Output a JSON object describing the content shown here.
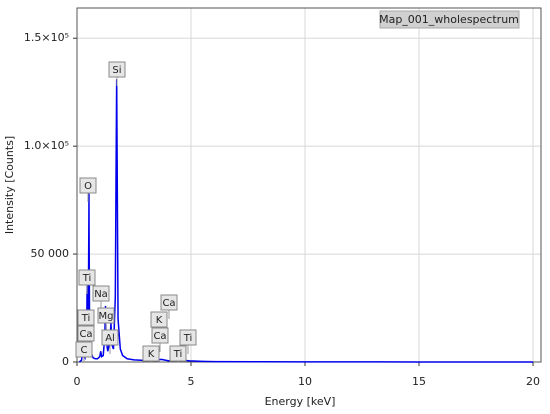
{
  "chart_data": {
    "type": "line",
    "xlabel": "Energy [keV]",
    "ylabel": "Intensity [Counts]",
    "legend_label": "Map_001_wholespectrum",
    "x": [
      0.1,
      0.2,
      0.26,
      0.28,
      0.3,
      0.35,
      0.4,
      0.43,
      0.45,
      0.48,
      0.5,
      0.52,
      0.525,
      0.53,
      0.55,
      0.6,
      0.7,
      0.8,
      0.9,
      1.0,
      1.04,
      1.08,
      1.15,
      1.22,
      1.25,
      1.28,
      1.35,
      1.45,
      1.49,
      1.53,
      1.6,
      1.68,
      1.72,
      1.74,
      1.76,
      1.8,
      1.9,
      2.0,
      2.2,
      2.5,
      3.0,
      3.3,
      3.4,
      3.7,
      4.0,
      4.5,
      4.95,
      5.5,
      6,
      8,
      10,
      15,
      20
    ],
    "series": [
      {
        "name": "Map_001_wholespectrum",
        "color": "#0000ee",
        "values": [
          0,
          800,
          6000,
          9000,
          3000,
          2000,
          8000,
          20000,
          42000,
          15000,
          30000,
          65000,
          78000,
          60000,
          20000,
          5000,
          2000,
          1500,
          1500,
          2500,
          5000,
          2500,
          3000,
          12000,
          26000,
          10000,
          5000,
          10000,
          18000,
          8000,
          6000,
          30000,
          100000,
          131000,
          95000,
          20000,
          6000,
          3000,
          1500,
          1000,
          700,
          1200,
          800,
          1200,
          600,
          900,
          500,
          300,
          200,
          100,
          50,
          20,
          10
        ]
      }
    ],
    "peak_labels": [
      "Si",
      "O",
      "Ti",
      "Na",
      "Ti",
      "Mg",
      "Ca",
      "Al",
      "C",
      "Ca",
      "K",
      "Ca",
      "Ti",
      "K",
      "Ti"
    ],
    "xlim": [
      0,
      20.35
    ],
    "xticks": [
      0,
      5,
      10,
      15,
      20
    ],
    "ylim": [
      0,
      164000
    ],
    "yticks": [
      0,
      {
        "value": 50000,
        "label": "50 000"
      },
      {
        "value": 100000,
        "label": "1.0×10⁵"
      },
      {
        "value": 150000,
        "label": "1.5×10⁵"
      }
    ],
    "grid": true
  }
}
